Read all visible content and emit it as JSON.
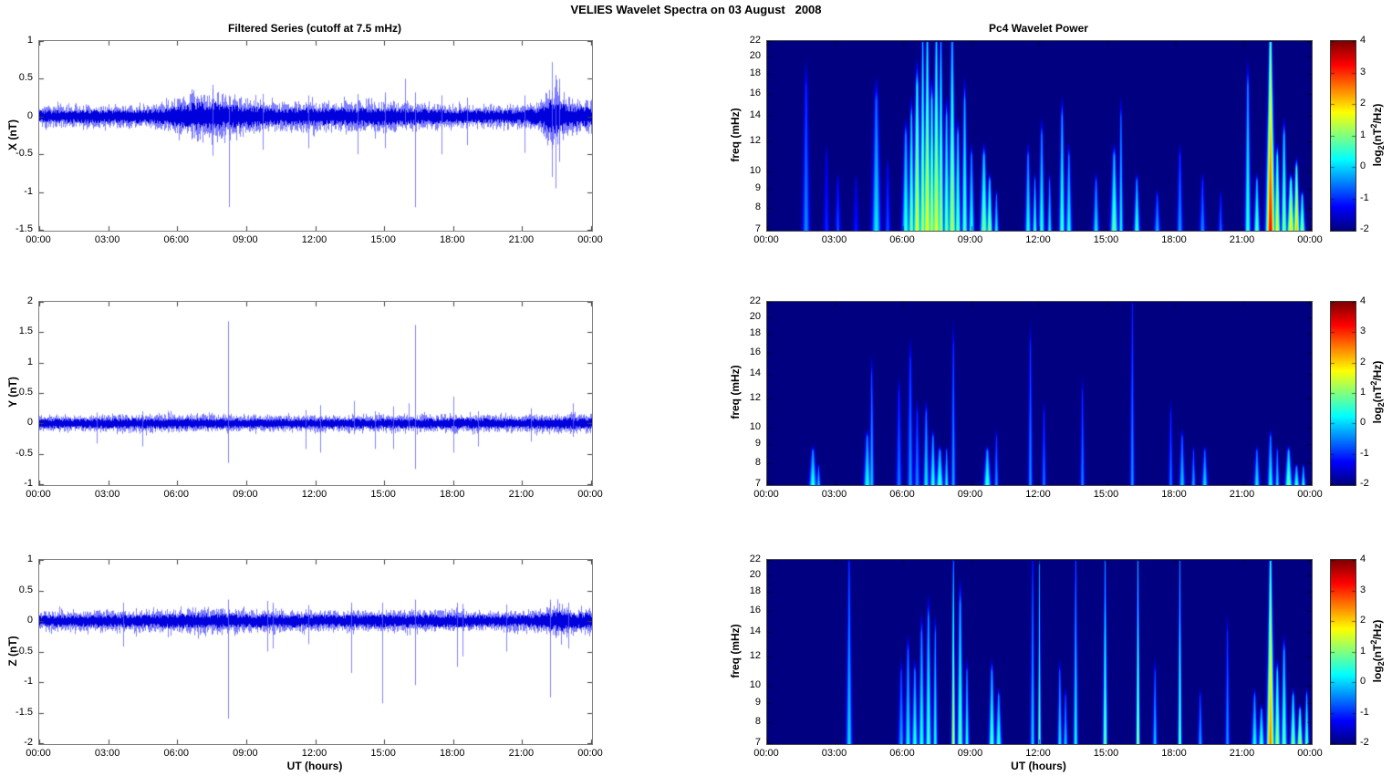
{
  "figure": {
    "title": "VELIES Wavelet Spectra on 03 August   2008"
  },
  "titles": {
    "left": "Filtered Series (cutoff at 7.5 mHz)",
    "right": "Pc4 Wavelet Power"
  },
  "xlabel": "UT (hours)",
  "x_ticks": [
    "00:00",
    "03:00",
    "06:00",
    "09:00",
    "12:00",
    "15:00",
    "18:00",
    "21:00",
    "00:00"
  ],
  "colorbar": {
    "ticks": [
      4,
      3,
      2,
      1,
      0,
      -1,
      -2
    ],
    "min": -2,
    "max": 4,
    "label_pre": "log",
    "label_sub": "2",
    "label_mid": "(nT",
    "label_sup": "2",
    "label_post": "/Hz)"
  },
  "colors": {
    "line": "#0000dd",
    "line_fuzz": "rgba(0,0,255,0.5)",
    "spike": "rgba(100,100,255,0.8)",
    "heat_background": "#000080",
    "colormap": "jet"
  },
  "chart_data": [
    {
      "id": "series-x",
      "type": "line",
      "ylabel": "X (nT)",
      "ylim": [
        -1.5,
        1
      ],
      "yticks": [
        1,
        0.5,
        0,
        -0.5,
        -1,
        -1.5
      ],
      "x_range_hours": [
        0,
        24
      ],
      "noise_envelope": [
        [
          0,
          0.11
        ],
        [
          2,
          0.12
        ],
        [
          4,
          0.12
        ],
        [
          5,
          0.13
        ],
        [
          6,
          0.2
        ],
        [
          6.8,
          0.26
        ],
        [
          7.6,
          0.26
        ],
        [
          8.3,
          0.21
        ],
        [
          9.3,
          0.2
        ],
        [
          10,
          0.16
        ],
        [
          10.8,
          0.15
        ],
        [
          11.5,
          0.17
        ],
        [
          12.3,
          0.16
        ],
        [
          13.5,
          0.16
        ],
        [
          14.5,
          0.17
        ],
        [
          15.3,
          0.16
        ],
        [
          16,
          0.15
        ],
        [
          17,
          0.14
        ],
        [
          18,
          0.13
        ],
        [
          19,
          0.12
        ],
        [
          20,
          0.12
        ],
        [
          21,
          0.13
        ],
        [
          21.7,
          0.15
        ],
        [
          22.1,
          0.28
        ],
        [
          22.4,
          0.34
        ],
        [
          22.7,
          0.26
        ],
        [
          23.2,
          0.19
        ],
        [
          23.6,
          0.18
        ],
        [
          24,
          0.17
        ]
      ],
      "spikes": [
        [
          7.55,
          -0.52,
          0.42
        ],
        [
          8.25,
          -1.2,
          0.28
        ],
        [
          9.7,
          -0.44,
          0.3
        ],
        [
          11.7,
          -0.42,
          0.28
        ],
        [
          13.85,
          -0.5,
          0.3
        ],
        [
          15.05,
          -0.42,
          0.32
        ],
        [
          15.9,
          -0.15,
          0.5
        ],
        [
          16.35,
          -1.2,
          0.32
        ],
        [
          17.5,
          -0.5,
          0.28
        ],
        [
          18.6,
          -0.38,
          0.25
        ],
        [
          21.1,
          -0.48,
          0.28
        ],
        [
          22.3,
          -0.8,
          0.72
        ],
        [
          22.45,
          -0.95,
          0.55
        ],
        [
          22.6,
          -0.6,
          0.5
        ]
      ]
    },
    {
      "id": "wavelet-x",
      "type": "heatmap",
      "ylabel": "freq (mHz)",
      "flim": [
        7,
        22
      ],
      "yticks": [
        22,
        20,
        18,
        16,
        14,
        12,
        10,
        9,
        8,
        7
      ],
      "clim": [
        -2,
        4
      ],
      "events": [
        [
          1.7,
          0.05,
          -0.4,
          20
        ],
        [
          2.6,
          0.04,
          -1.0,
          12
        ],
        [
          3.1,
          0.04,
          -0.8,
          10
        ],
        [
          3.9,
          0.04,
          -1.1,
          10
        ],
        [
          4.8,
          0.06,
          0.2,
          18
        ],
        [
          5.3,
          0.04,
          -0.8,
          11
        ],
        [
          6.1,
          0.05,
          0.6,
          14
        ],
        [
          6.35,
          0.04,
          1.1,
          16
        ],
        [
          6.6,
          0.05,
          1.7,
          20
        ],
        [
          6.85,
          0.04,
          1.5,
          22
        ],
        [
          7.05,
          0.05,
          1.9,
          22
        ],
        [
          7.25,
          0.04,
          1.6,
          18
        ],
        [
          7.45,
          0.05,
          1.8,
          22
        ],
        [
          7.65,
          0.04,
          1.4,
          22
        ],
        [
          7.9,
          0.04,
          1.0,
          16
        ],
        [
          8.15,
          0.05,
          1.5,
          22
        ],
        [
          8.4,
          0.04,
          1.0,
          14
        ],
        [
          8.7,
          0.04,
          0.8,
          18
        ],
        [
          9.0,
          0.04,
          0.5,
          12
        ],
        [
          9.55,
          0.05,
          1.1,
          12
        ],
        [
          9.8,
          0.04,
          1.2,
          10
        ],
        [
          10.1,
          0.03,
          0.3,
          9
        ],
        [
          11.5,
          0.04,
          0.4,
          12
        ],
        [
          11.8,
          0.03,
          0.6,
          10
        ],
        [
          12.1,
          0.04,
          0.5,
          14
        ],
        [
          12.45,
          0.03,
          0.2,
          10
        ],
        [
          13.0,
          0.04,
          0.7,
          16
        ],
        [
          13.3,
          0.04,
          0.4,
          12
        ],
        [
          14.5,
          0.04,
          0.2,
          10
        ],
        [
          15.3,
          0.05,
          0.9,
          12
        ],
        [
          15.6,
          0.03,
          0.3,
          16
        ],
        [
          16.3,
          0.04,
          0.6,
          10
        ],
        [
          17.2,
          0.04,
          -0.2,
          9
        ],
        [
          18.2,
          0.04,
          -0.3,
          12
        ],
        [
          19.2,
          0.04,
          -0.4,
          10
        ],
        [
          20.0,
          0.03,
          -0.6,
          9
        ],
        [
          21.2,
          0.04,
          0.6,
          20
        ],
        [
          21.6,
          0.04,
          0.8,
          10
        ],
        [
          22.2,
          0.06,
          3.3,
          22
        ],
        [
          22.5,
          0.04,
          1.8,
          12
        ],
        [
          22.8,
          0.04,
          1.2,
          14
        ],
        [
          23.1,
          0.05,
          2.0,
          10
        ],
        [
          23.35,
          0.04,
          2.2,
          11
        ],
        [
          23.6,
          0.04,
          1.2,
          9
        ]
      ]
    },
    {
      "id": "series-y",
      "type": "line",
      "ylabel": "Y (nT)",
      "ylim": [
        -1,
        2
      ],
      "yticks": [
        2,
        1.5,
        1,
        0.5,
        0,
        -0.5,
        -1
      ],
      "x_range_hours": [
        0,
        24
      ],
      "noise_envelope": [
        [
          0,
          0.11
        ],
        [
          3,
          0.115
        ],
        [
          6,
          0.12
        ],
        [
          9,
          0.11
        ],
        [
          12,
          0.11
        ],
        [
          15,
          0.11
        ],
        [
          18,
          0.12
        ],
        [
          21,
          0.11
        ],
        [
          22.5,
          0.13
        ],
        [
          24,
          0.13
        ]
      ],
      "spikes": [
        [
          2.5,
          -0.33,
          0.18
        ],
        [
          4.5,
          -0.38,
          0.2
        ],
        [
          8.2,
          -0.65,
          1.68
        ],
        [
          11.6,
          -0.42,
          0.22
        ],
        [
          12.2,
          -0.48,
          0.3
        ],
        [
          13.7,
          -0.18,
          0.37
        ],
        [
          14.6,
          -0.42,
          0.2
        ],
        [
          15.4,
          -0.42,
          0.28
        ],
        [
          16.05,
          -0.12,
          0.33
        ],
        [
          16.35,
          -0.75,
          1.62
        ],
        [
          18.0,
          -0.48,
          0.44
        ],
        [
          19.1,
          -0.38,
          0.2
        ],
        [
          21.4,
          -0.3,
          0.25
        ],
        [
          23.2,
          -0.22,
          0.33
        ]
      ]
    },
    {
      "id": "wavelet-y",
      "type": "heatmap",
      "ylabel": "freq (mHz)",
      "flim": [
        7,
        22
      ],
      "yticks": [
        22,
        20,
        18,
        16,
        14,
        12,
        10,
        9,
        8,
        7
      ],
      "clim": [
        -2,
        4
      ],
      "events": [
        [
          2.0,
          0.05,
          0.5,
          9
        ],
        [
          2.25,
          0.03,
          0.0,
          8
        ],
        [
          4.4,
          0.05,
          0.4,
          10
        ],
        [
          4.6,
          0.03,
          0.0,
          16
        ],
        [
          5.8,
          0.04,
          -0.5,
          14
        ],
        [
          6.3,
          0.04,
          -0.3,
          18
        ],
        [
          6.6,
          0.04,
          -0.4,
          12
        ],
        [
          7.0,
          0.04,
          0.2,
          12
        ],
        [
          7.3,
          0.04,
          0.5,
          10
        ],
        [
          7.6,
          0.05,
          0.7,
          9
        ],
        [
          7.9,
          0.03,
          0.3,
          9
        ],
        [
          8.2,
          0.03,
          -0.2,
          20
        ],
        [
          9.7,
          0.05,
          0.6,
          9
        ],
        [
          10.1,
          0.03,
          -0.3,
          10
        ],
        [
          11.6,
          0.03,
          -0.3,
          20
        ],
        [
          12.2,
          0.03,
          -0.5,
          12
        ],
        [
          13.9,
          0.03,
          -0.4,
          14
        ],
        [
          16.1,
          0.03,
          -0.3,
          22
        ],
        [
          17.8,
          0.03,
          -0.5,
          12
        ],
        [
          18.3,
          0.04,
          0.0,
          10
        ],
        [
          18.8,
          0.03,
          -0.2,
          9
        ],
        [
          19.3,
          0.04,
          0.1,
          9
        ],
        [
          21.6,
          0.04,
          0.2,
          9
        ],
        [
          22.2,
          0.04,
          0.4,
          10
        ],
        [
          22.5,
          0.03,
          0.1,
          9
        ],
        [
          23.0,
          0.05,
          0.9,
          9
        ],
        [
          23.35,
          0.04,
          0.6,
          8
        ],
        [
          23.65,
          0.03,
          0.4,
          8
        ]
      ]
    },
    {
      "id": "series-z",
      "type": "line",
      "ylabel": "Z (nT)",
      "ylim": [
        -2,
        1
      ],
      "yticks": [
        1,
        0.5,
        0,
        -0.5,
        -1,
        -1.5,
        -2
      ],
      "x_range_hours": [
        0,
        24
      ],
      "noise_envelope": [
        [
          0,
          0.13
        ],
        [
          3,
          0.14
        ],
        [
          5,
          0.15
        ],
        [
          6.5,
          0.17
        ],
        [
          8,
          0.16
        ],
        [
          10,
          0.15
        ],
        [
          12,
          0.14
        ],
        [
          14,
          0.14
        ],
        [
          16,
          0.15
        ],
        [
          18,
          0.14
        ],
        [
          20,
          0.13
        ],
        [
          21.5,
          0.14
        ],
        [
          22.3,
          0.2
        ],
        [
          22.7,
          0.24
        ],
        [
          23.2,
          0.17
        ],
        [
          24,
          0.19
        ]
      ],
      "spikes": [
        [
          3.65,
          -0.42,
          0.3
        ],
        [
          8.2,
          -1.6,
          0.35
        ],
        [
          9.9,
          -0.5,
          0.33
        ],
        [
          10.15,
          -0.45,
          0.3
        ],
        [
          11.7,
          -0.38,
          0.26
        ],
        [
          13.55,
          -0.85,
          0.3
        ],
        [
          14.9,
          -1.35,
          0.3
        ],
        [
          16.35,
          -1.05,
          0.35
        ],
        [
          18.15,
          -0.75,
          0.3
        ],
        [
          18.4,
          -0.58,
          0.28
        ],
        [
          20.3,
          -0.5,
          0.27
        ],
        [
          22.2,
          -1.25,
          0.35
        ],
        [
          23.0,
          -0.45,
          0.3
        ]
      ]
    },
    {
      "id": "wavelet-z",
      "type": "heatmap",
      "ylabel": "freq (mHz)",
      "flim": [
        7,
        22
      ],
      "yticks": [
        22,
        20,
        18,
        16,
        14,
        12,
        10,
        9,
        8,
        7
      ],
      "clim": [
        -2,
        4
      ],
      "events": [
        [
          3.6,
          0.04,
          0.1,
          22
        ],
        [
          5.9,
          0.04,
          -0.2,
          12
        ],
        [
          6.2,
          0.04,
          0.3,
          14
        ],
        [
          6.5,
          0.04,
          0.5,
          12
        ],
        [
          6.8,
          0.04,
          0.5,
          16
        ],
        [
          7.1,
          0.04,
          0.7,
          18
        ],
        [
          7.4,
          0.03,
          0.4,
          16
        ],
        [
          8.2,
          0.025,
          1.6,
          22
        ],
        [
          8.5,
          0.04,
          0.9,
          20
        ],
        [
          8.8,
          0.03,
          0.4,
          12
        ],
        [
          9.9,
          0.04,
          0.8,
          12
        ],
        [
          10.2,
          0.04,
          0.6,
          10
        ],
        [
          11.7,
          0.03,
          0.1,
          22
        ],
        [
          12.0,
          0.02,
          1.0,
          22
        ],
        [
          12.9,
          0.03,
          0.2,
          12
        ],
        [
          13.15,
          0.03,
          0.0,
          10
        ],
        [
          13.6,
          0.03,
          0.4,
          22
        ],
        [
          14.9,
          0.03,
          1.0,
          22
        ],
        [
          16.35,
          0.025,
          1.4,
          22
        ],
        [
          17.1,
          0.03,
          0.0,
          12
        ],
        [
          18.2,
          0.025,
          1.0,
          22
        ],
        [
          19.1,
          0.03,
          -0.2,
          10
        ],
        [
          20.3,
          0.03,
          -0.3,
          16
        ],
        [
          21.5,
          0.04,
          0.4,
          10
        ],
        [
          21.8,
          0.04,
          0.7,
          9
        ],
        [
          22.2,
          0.05,
          2.6,
          22
        ],
        [
          22.5,
          0.04,
          1.3,
          12
        ],
        [
          22.8,
          0.04,
          0.9,
          14
        ],
        [
          23.2,
          0.04,
          1.1,
          10
        ],
        [
          23.5,
          0.04,
          1.4,
          9
        ],
        [
          23.8,
          0.03,
          0.9,
          10
        ]
      ]
    }
  ]
}
